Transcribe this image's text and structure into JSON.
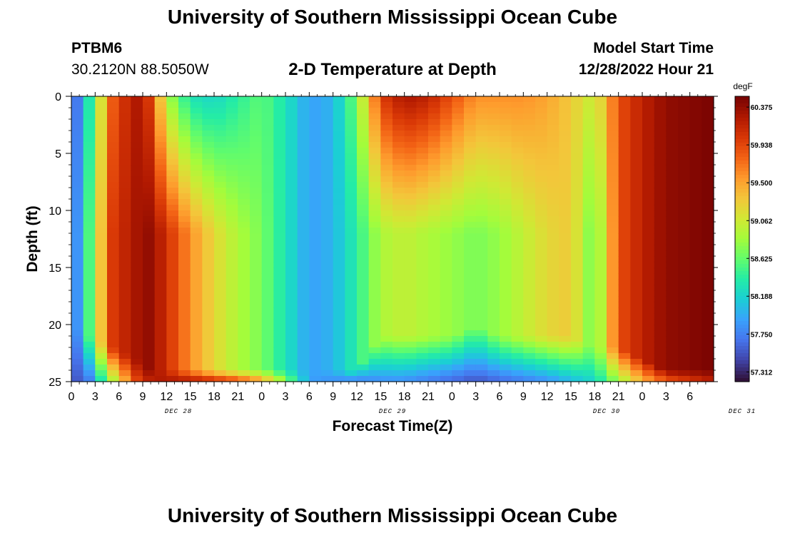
{
  "header": {
    "title": "University of Southern Mississippi Ocean Cube",
    "station_id": "PTBM6",
    "station_coords": "30.2120N  88.5050W",
    "chart_title": "2-D Temperature at Depth",
    "model_start_label": "Model Start Time",
    "model_start_value": "12/28/2022 Hour 21"
  },
  "footer": {
    "title": "University of Southern Mississippi Ocean Cube"
  },
  "chart_data": {
    "type": "heatmap",
    "title": "2-D Temperature at Depth",
    "xlabel": "Forecast Time(Z)",
    "ylabel": "Depth (ft)",
    "x_ticks": [
      "0",
      "3",
      "6",
      "9",
      "12",
      "15",
      "18",
      "21",
      "0",
      "3",
      "6",
      "9",
      "12",
      "15",
      "18",
      "21",
      "0",
      "3",
      "6",
      "9",
      "12",
      "15",
      "18",
      "21",
      "0",
      "3",
      "6"
    ],
    "x_day_labels": [
      {
        "label": "DEC 28",
        "tick_index": 4.5
      },
      {
        "label": "DEC 29",
        "tick_index": 13.5
      },
      {
        "label": "DEC 30",
        "tick_index": 22.5
      },
      {
        "label": "DEC 31",
        "tick_index": 28.2
      }
    ],
    "x_range_hours": [
      0,
      81
    ],
    "y_ticks": [
      0,
      5,
      10,
      15,
      20,
      25
    ],
    "ylim": [
      0,
      25
    ],
    "y_inverted": true,
    "colorbar": {
      "unit": "degF",
      "labels": [
        "60.375",
        "59.938",
        "59.500",
        "59.062",
        "58.625",
        "58.188",
        "57.750",
        "57.312"
      ],
      "vmin": 57.2,
      "vmax": 60.5,
      "colormap": [
        "#30123b",
        "#4145ab",
        "#4675ed",
        "#39a2fc",
        "#1bcfd4",
        "#24eca6",
        "#61fc6c",
        "#a4fc3b",
        "#d1e834",
        "#f3c63a",
        "#fe9b2d",
        "#f36315",
        "#d93806",
        "#b11901",
        "#7a0402"
      ]
    },
    "temperature_pattern": [
      {
        "hour": 0,
        "surface": 57.4,
        "mid": 57.5,
        "bottom": 57.5,
        "transition_depth": 20
      },
      {
        "hour": 2,
        "surface": 58.2,
        "mid": 58.4,
        "bottom": 57.6,
        "transition_depth": 21
      },
      {
        "hour": 5,
        "surface": 59.8,
        "mid": 60.0,
        "bottom": 58.8,
        "transition_depth": 22
      },
      {
        "hour": 8,
        "surface": 60.3,
        "mid": 60.3,
        "bottom": 59.9,
        "transition_depth": 23
      },
      {
        "hour": 10,
        "surface": 60.0,
        "mid": 60.4,
        "bottom": 60.2,
        "transition_depth": 24
      },
      {
        "hour": 12,
        "surface": 58.9,
        "mid": 60.1,
        "bottom": 60.3,
        "transition_depth": 24
      },
      {
        "hour": 15,
        "surface": 58.3,
        "mid": 59.6,
        "bottom": 60.3,
        "transition_depth": 24
      },
      {
        "hour": 18,
        "surface": 58.2,
        "mid": 59.2,
        "bottom": 60.2,
        "transition_depth": 24
      },
      {
        "hour": 21,
        "surface": 58.4,
        "mid": 58.9,
        "bottom": 60.0,
        "transition_depth": 24
      },
      {
        "hour": 24,
        "surface": 58.6,
        "mid": 58.7,
        "bottom": 59.6,
        "transition_depth": 24
      },
      {
        "hour": 27,
        "surface": 58.3,
        "mid": 58.3,
        "bottom": 58.8,
        "transition_depth": 24
      },
      {
        "hour": 30,
        "surface": 57.9,
        "mid": 57.9,
        "bottom": 57.9,
        "transition_depth": 24
      },
      {
        "hour": 33,
        "surface": 58.0,
        "mid": 58.0,
        "bottom": 57.8,
        "transition_depth": 24
      },
      {
        "hour": 36,
        "surface": 58.7,
        "mid": 58.4,
        "bottom": 57.7,
        "transition_depth": 24
      },
      {
        "hour": 39,
        "surface": 60.0,
        "mid": 58.9,
        "bottom": 57.8,
        "transition_depth": 21
      },
      {
        "hour": 42,
        "surface": 60.3,
        "mid": 59.0,
        "bottom": 57.8,
        "transition_depth": 21
      },
      {
        "hour": 45,
        "surface": 60.2,
        "mid": 58.9,
        "bottom": 57.7,
        "transition_depth": 21
      },
      {
        "hour": 48,
        "surface": 59.9,
        "mid": 58.8,
        "bottom": 57.6,
        "transition_depth": 21
      },
      {
        "hour": 51,
        "surface": 59.6,
        "mid": 58.7,
        "bottom": 57.5,
        "transition_depth": 20
      },
      {
        "hour": 54,
        "surface": 59.6,
        "mid": 58.8,
        "bottom": 57.6,
        "transition_depth": 21
      },
      {
        "hour": 57,
        "surface": 59.6,
        "mid": 59.0,
        "bottom": 57.7,
        "transition_depth": 21
      },
      {
        "hour": 60,
        "surface": 59.5,
        "mid": 59.2,
        "bottom": 57.8,
        "transition_depth": 21
      },
      {
        "hour": 63,
        "surface": 59.3,
        "mid": 59.3,
        "bottom": 58.0,
        "transition_depth": 21
      },
      {
        "hour": 66,
        "surface": 59.0,
        "mid": 58.6,
        "bottom": 58.2,
        "transition_depth": 22
      },
      {
        "hour": 69,
        "surface": 59.9,
        "mid": 59.9,
        "bottom": 58.8,
        "transition_depth": 22
      },
      {
        "hour": 72,
        "surface": 60.2,
        "mid": 60.2,
        "bottom": 59.4,
        "transition_depth": 23
      },
      {
        "hour": 75,
        "surface": 60.4,
        "mid": 60.4,
        "bottom": 59.8,
        "transition_depth": 24
      },
      {
        "hour": 81,
        "surface": 60.5,
        "mid": 60.5,
        "bottom": 60.2,
        "transition_depth": 24
      }
    ]
  }
}
